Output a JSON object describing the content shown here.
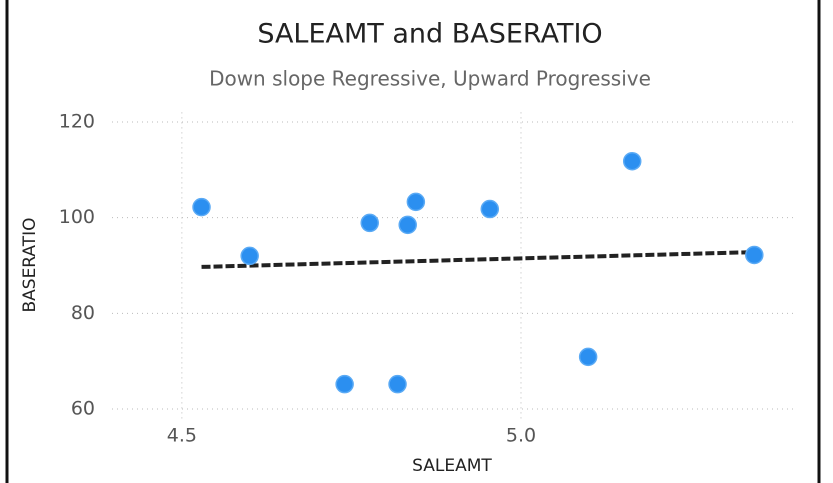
{
  "chart_data": {
    "type": "scatter",
    "title": "SALEAMT and BASERATIO",
    "subtitle": "Down slope Regressive, Upward Progressive",
    "x_label": "SALEAMT",
    "y_label": "BASERATIO",
    "x": [
      4.529,
      4.6,
      4.74,
      4.777,
      4.818,
      4.833,
      4.845,
      4.954,
      5.099,
      5.164,
      5.344
    ],
    "values": [
      102.2,
      92.0,
      65.2,
      98.9,
      65.2,
      98.5,
      103.3,
      101.8,
      70.9,
      111.8,
      92.2
    ],
    "color": "#2b8ff0",
    "trend_line": {
      "x": [
        4.529,
        5.344
      ],
      "y": [
        89.7,
        92.8
      ],
      "color": "#222222"
    },
    "xlim": [
      4.397,
      5.404
    ],
    "ylim": [
      58,
      122
    ],
    "xticks": [
      {
        "value": 4.5,
        "label": "4.5"
      },
      {
        "value": 5.0,
        "label": "5.0"
      }
    ],
    "yticks": [
      60,
      80,
      100,
      120
    ],
    "grid": true
  }
}
